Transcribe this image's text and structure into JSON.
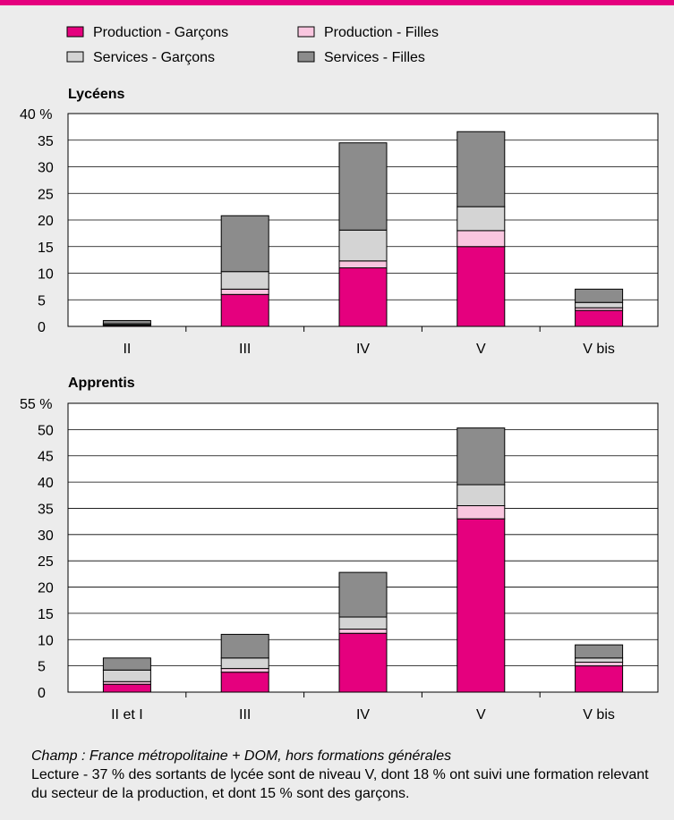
{
  "colors": {
    "accent": "#e5007e",
    "production_garcons": "#e5007e",
    "production_filles": "#f9c6df",
    "services_garcons": "#d4d4d4",
    "services_filles": "#8c8c8c",
    "background": "#ececec"
  },
  "legend": [
    {
      "key": "production_garcons",
      "label": "Production - Garçons"
    },
    {
      "key": "production_filles",
      "label": "Production - Filles"
    },
    {
      "key": "services_garcons",
      "label": "Services - Garçons"
    },
    {
      "key": "services_filles",
      "label": "Services - Filles"
    }
  ],
  "chart_data": [
    {
      "type": "bar",
      "stacked": true,
      "title": "Lycéens",
      "categories": [
        "II",
        "III",
        "IV",
        "V",
        "V bis"
      ],
      "ylim": [
        0,
        40
      ],
      "yticks": [
        "0",
        "5",
        "10",
        "15",
        "20",
        "25",
        "30",
        "35",
        "40 %"
      ],
      "grid": true,
      "series": [
        {
          "key": "production_garcons",
          "name": "Production - Garçons",
          "values": [
            0.2,
            6.0,
            11.0,
            15.0,
            3.0
          ]
        },
        {
          "key": "production_filles",
          "name": "Production - Filles",
          "values": [
            0.1,
            1.0,
            1.3,
            3.0,
            0.5
          ]
        },
        {
          "key": "services_garcons",
          "name": "Services - Garçons",
          "values": [
            0.2,
            3.3,
            5.8,
            4.5,
            1.0
          ]
        },
        {
          "key": "services_filles",
          "name": "Services - Filles",
          "values": [
            0.6,
            10.5,
            16.4,
            14.1,
            2.5
          ]
        }
      ]
    },
    {
      "type": "bar",
      "stacked": true,
      "title": "Apprentis",
      "categories": [
        "II et I",
        "III",
        "IV",
        "V",
        "V bis"
      ],
      "ylim": [
        0,
        55
      ],
      "yticks": [
        "0",
        "5",
        "10",
        "15",
        "20",
        "25",
        "30",
        "35",
        "40",
        "45",
        "50",
        "55 %"
      ],
      "grid": true,
      "series": [
        {
          "key": "production_garcons",
          "name": "Production - Garçons",
          "values": [
            1.5,
            3.8,
            11.2,
            33.0,
            5.0
          ]
        },
        {
          "key": "production_filles",
          "name": "Production - Filles",
          "values": [
            0.5,
            0.7,
            0.8,
            2.5,
            0.7
          ]
        },
        {
          "key": "services_garcons",
          "name": "Services - Garçons",
          "values": [
            2.2,
            2.0,
            2.3,
            4.0,
            0.8
          ]
        },
        {
          "key": "services_filles",
          "name": "Services - Filles",
          "values": [
            2.3,
            4.5,
            8.5,
            10.8,
            2.5
          ]
        }
      ]
    }
  ],
  "footer": {
    "champ": "Champ : France métropolitaine + DOM, hors formations générales",
    "lecture": "Lecture - 37 % des sortants de lycée sont de niveau V, dont 18 % ont suivi une formation relevant du secteur de la production, et dont 15 % sont des garçons."
  }
}
